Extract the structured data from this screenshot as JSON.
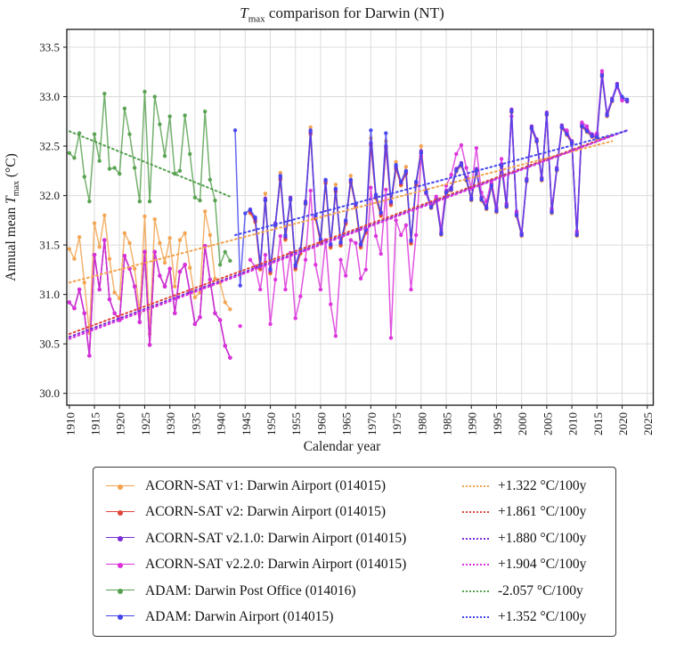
{
  "title": {
    "var": "T",
    "sub": "max",
    "rest": " comparison for Darwin (NT)"
  },
  "ylabel": {
    "pre": "Annual mean ",
    "var": "T",
    "sub": "max",
    "post": " (°C)"
  },
  "chart_data": {
    "type": "line",
    "title": "T_max comparison for Darwin (NT)",
    "xlabel": "Calendar year",
    "ylabel": "Annual mean T_max (°C)",
    "xlim": [
      1909.5,
      2026.2
    ],
    "ylim": [
      29.88,
      33.68
    ],
    "x_ticks": [
      1910,
      1915,
      1920,
      1925,
      1930,
      1935,
      1940,
      1945,
      1950,
      1955,
      1960,
      1965,
      1970,
      1975,
      1980,
      1985,
      1990,
      1995,
      2000,
      2005,
      2010,
      2015,
      2020,
      2025
    ],
    "y_ticks": [
      30.0,
      30.5,
      31.0,
      31.5,
      32.0,
      32.5,
      33.0,
      33.5
    ],
    "grid": true,
    "grid_color": "#dcdcdc",
    "border_color": "#262626",
    "legend_position": "below",
    "series": [
      {
        "id": "acorn-v1",
        "label": "ACORN-SAT v1: Darwin Airport (014015)",
        "color": "#F2A24E",
        "trend_label": "+1.322 °C/100y",
        "trend_line": {
          "year0": 1910,
          "value0": 31.12,
          "year1": 2018,
          "value1": 32.55
        },
        "start_year": 1910,
        "values": [
          31.46,
          31.36,
          31.58,
          31.12,
          30.61,
          31.72,
          31.48,
          31.8,
          31.36,
          31.02,
          30.96,
          31.62,
          31.52,
          31.26,
          30.81,
          31.79,
          30.6,
          31.76,
          31.52,
          31.32,
          31.57,
          31.08,
          31.55,
          31.62,
          31.27,
          30.97,
          31.02,
          31.84,
          31.6,
          31.16,
          31.12,
          30.92,
          30.85,
          null,
          null,
          null,
          31.82,
          31.73,
          31.25,
          32.02,
          31.21,
          31.69,
          32.23,
          31.55,
          31.95,
          31.25,
          31.41,
          31.91,
          32.69,
          31.76,
          31.52,
          32.12,
          31.47,
          32.11,
          31.49,
          31.71,
          32.2,
          31.88,
          31.47,
          31.62,
          32.58,
          31.97,
          31.79,
          32.55,
          31.9,
          32.34,
          32.1,
          32.29,
          31.51,
          32.1,
          32.5,
          32.02,
          31.87,
          31.94,
          31.6,
          32.02,
          32.05,
          32.24,
          32.3,
          32.15,
          31.95,
          32.24,
          31.95,
          31.86,
          32.09,
          31.83,
          32.29,
          31.88,
          32.84,
          31.79,
          31.59,
          32.14,
          32.67,
          32.54,
          32.15,
          32.81,
          31.82,
          32.25,
          32.68,
          32.61,
          32.52,
          31.59,
          32.69,
          32.64,
          32.59,
          32.58,
          33.2,
          32.8,
          32.95
        ]
      },
      {
        "id": "acorn-v2",
        "label": "ACORN-SAT v2: Darwin Airport (014015)",
        "color": "#E0453A",
        "trend_label": "+1.861 °C/100y",
        "trend_line": {
          "year0": 1910,
          "value0": 30.6,
          "year1": 2018,
          "value1": 32.61
        },
        "start_year": 1910,
        "values": [
          30.92,
          30.86,
          31.05,
          30.81,
          30.38,
          31.4,
          31.05,
          31.55,
          30.95,
          30.81,
          30.74,
          31.39,
          31.26,
          31.08,
          30.72,
          31.43,
          30.49,
          31.43,
          31.19,
          31.08,
          31.26,
          30.81,
          31.23,
          31.3,
          31.02,
          30.7,
          30.77,
          31.49,
          31.15,
          30.81,
          30.74,
          30.48,
          30.36,
          null,
          null,
          null,
          31.83,
          31.74,
          31.26,
          31.95,
          31.22,
          31.7,
          32.16,
          31.56,
          31.96,
          31.26,
          31.42,
          31.92,
          32.62,
          31.77,
          31.53,
          32.13,
          31.48,
          32.04,
          31.5,
          31.72,
          32.13,
          31.89,
          31.48,
          31.63,
          32.51,
          31.98,
          31.8,
          32.48,
          31.91,
          32.27,
          32.11,
          32.22,
          31.52,
          32.11,
          32.43,
          32.03,
          31.88,
          31.95,
          31.61,
          32.03,
          32.06,
          32.25,
          32.31,
          32.16,
          31.96,
          32.25,
          31.96,
          31.87,
          32.1,
          31.84,
          32.3,
          31.89,
          32.85,
          31.8,
          31.6,
          32.15,
          32.68,
          32.55,
          32.16,
          32.82,
          31.83,
          32.26,
          32.69,
          32.62,
          32.53,
          31.6,
          32.7,
          32.65,
          32.6,
          32.59,
          33.21,
          32.81,
          32.96
        ]
      },
      {
        "id": "acorn-v210",
        "label": "ACORN-SAT v2.1.0:  Darwin Airport (014015)",
        "color": "#7A2BDA",
        "trend_label": "+1.880 °C/100y",
        "trend_line": {
          "year0": 1910,
          "value0": 30.57,
          "year1": 2021,
          "value1": 32.66
        },
        "start_year": 1910,
        "values": [
          30.92,
          30.86,
          31.05,
          30.81,
          30.38,
          31.4,
          31.05,
          31.55,
          30.95,
          30.81,
          30.74,
          31.39,
          31.26,
          31.08,
          30.72,
          31.43,
          30.49,
          31.43,
          31.19,
          31.08,
          31.26,
          30.81,
          31.23,
          31.3,
          31.02,
          30.7,
          30.77,
          31.49,
          31.15,
          30.81,
          30.74,
          30.48,
          30.36,
          null,
          null,
          null,
          31.85,
          31.76,
          31.28,
          31.97,
          31.24,
          31.72,
          32.18,
          31.58,
          31.98,
          31.28,
          31.44,
          31.94,
          32.64,
          31.79,
          31.55,
          32.15,
          31.5,
          32.06,
          31.52,
          31.74,
          32.15,
          31.91,
          31.5,
          31.65,
          32.53,
          32.0,
          31.82,
          32.5,
          31.93,
          32.29,
          32.13,
          32.24,
          31.54,
          32.13,
          32.45,
          32.05,
          31.9,
          31.97,
          31.63,
          32.05,
          32.08,
          32.27,
          32.33,
          32.18,
          31.98,
          32.27,
          31.98,
          31.89,
          32.12,
          31.86,
          32.32,
          31.91,
          32.87,
          31.82,
          31.62,
          32.17,
          32.7,
          32.57,
          32.18,
          32.84,
          31.85,
          32.28,
          32.71,
          32.64,
          32.55,
          31.62,
          32.72,
          32.67,
          32.62,
          32.61,
          33.23,
          32.83,
          32.98,
          33.13,
          32.98,
          32.95
        ]
      },
      {
        "id": "acorn-v220",
        "label": "ACORN-SAT v2.2.0:  Darwin Airport (014015)",
        "color": "#DB30DB",
        "trend_label": "+1.904 °C/100y",
        "trend_line": {
          "year0": 1910,
          "value0": 30.55,
          "year1": 2021,
          "value1": 32.66
        },
        "start_year": 1910,
        "values": [
          30.92,
          30.86,
          31.05,
          30.81,
          30.38,
          31.4,
          31.05,
          31.55,
          30.95,
          30.81,
          30.74,
          31.39,
          31.26,
          31.08,
          30.72,
          31.43,
          30.49,
          31.43,
          31.19,
          31.08,
          31.26,
          30.81,
          31.23,
          31.3,
          31.02,
          30.7,
          30.77,
          31.49,
          31.15,
          30.81,
          30.74,
          30.48,
          30.36,
          null,
          30.68,
          null,
          31.35,
          31.28,
          31.05,
          31.4,
          30.7,
          31.15,
          31.59,
          31.05,
          31.42,
          30.76,
          30.98,
          31.35,
          32.05,
          31.3,
          31.05,
          31.55,
          30.9,
          30.58,
          31.35,
          31.19,
          31.55,
          31.52,
          31.16,
          31.25,
          32.08,
          31.59,
          31.41,
          32.06,
          30.56,
          31.75,
          31.6,
          31.7,
          31.05,
          31.6,
          32.4,
          32.02,
          31.88,
          31.99,
          31.66,
          32.1,
          32.21,
          32.42,
          32.51,
          32.28,
          32.07,
          32.48,
          32.03,
          31.94,
          32.15,
          31.88,
          32.37,
          31.92,
          32.8,
          31.84,
          31.6,
          32.15,
          32.68,
          32.55,
          32.16,
          32.82,
          31.87,
          32.26,
          32.69,
          32.66,
          32.53,
          31.64,
          32.74,
          32.7,
          32.6,
          32.63,
          33.26,
          32.81,
          32.96,
          33.1,
          32.96
        ]
      },
      {
        "id": "adam-post-office",
        "label": "ADAM: Darwin Post Office  (014016)",
        "color": "#55A04E",
        "trend_label": "-2.057 °C/100y",
        "trend_line": {
          "year0": 1910,
          "value0": 32.65,
          "year1": 1942,
          "value1": 31.99
        },
        "start_year": 1910,
        "values": [
          32.43,
          32.38,
          32.63,
          32.19,
          31.94,
          32.62,
          32.35,
          33.03,
          32.27,
          32.28,
          32.22,
          32.88,
          32.62,
          32.28,
          31.94,
          33.05,
          31.94,
          33.0,
          32.72,
          32.4,
          32.8,
          32.22,
          32.25,
          32.81,
          32.42,
          31.98,
          31.95,
          32.85,
          32.16,
          31.95,
          31.3,
          31.43,
          31.34
        ]
      },
      {
        "id": "adam-airport",
        "label": "ADAM: Darwin Airport (014015)",
        "color": "#4444EE",
        "trend_label": "+1.352 °C/100y",
        "trend_line": {
          "year0": 1943,
          "value0": 31.6,
          "year1": 2021,
          "value1": 32.655
        },
        "start_year": 1943,
        "values": [
          32.66,
          31.09,
          31.82,
          31.86,
          31.78,
          31.3,
          31.95,
          31.26,
          31.7,
          32.2,
          31.6,
          31.96,
          31.3,
          31.46,
          31.92,
          32.66,
          31.8,
          31.56,
          32.16,
          31.51,
          32.07,
          31.53,
          31.75,
          32.16,
          31.92,
          31.51,
          31.66,
          32.66,
          32.01,
          31.83,
          32.63,
          31.94,
          32.31,
          32.14,
          32.25,
          31.55,
          32.14,
          32.43,
          32.03,
          31.88,
          31.95,
          31.61,
          32.03,
          32.06,
          32.25,
          32.31,
          32.16,
          31.96,
          32.25,
          31.96,
          31.87,
          32.1,
          31.84,
          32.3,
          31.89,
          32.85,
          31.8,
          31.6,
          32.15,
          32.68,
          32.55,
          32.16,
          32.82,
          31.83,
          32.26,
          32.69,
          32.62,
          32.53,
          31.6,
          32.7,
          32.65,
          32.6,
          32.59,
          33.21,
          32.81,
          32.96,
          33.11,
          33.0,
          32.97
        ]
      }
    ]
  }
}
